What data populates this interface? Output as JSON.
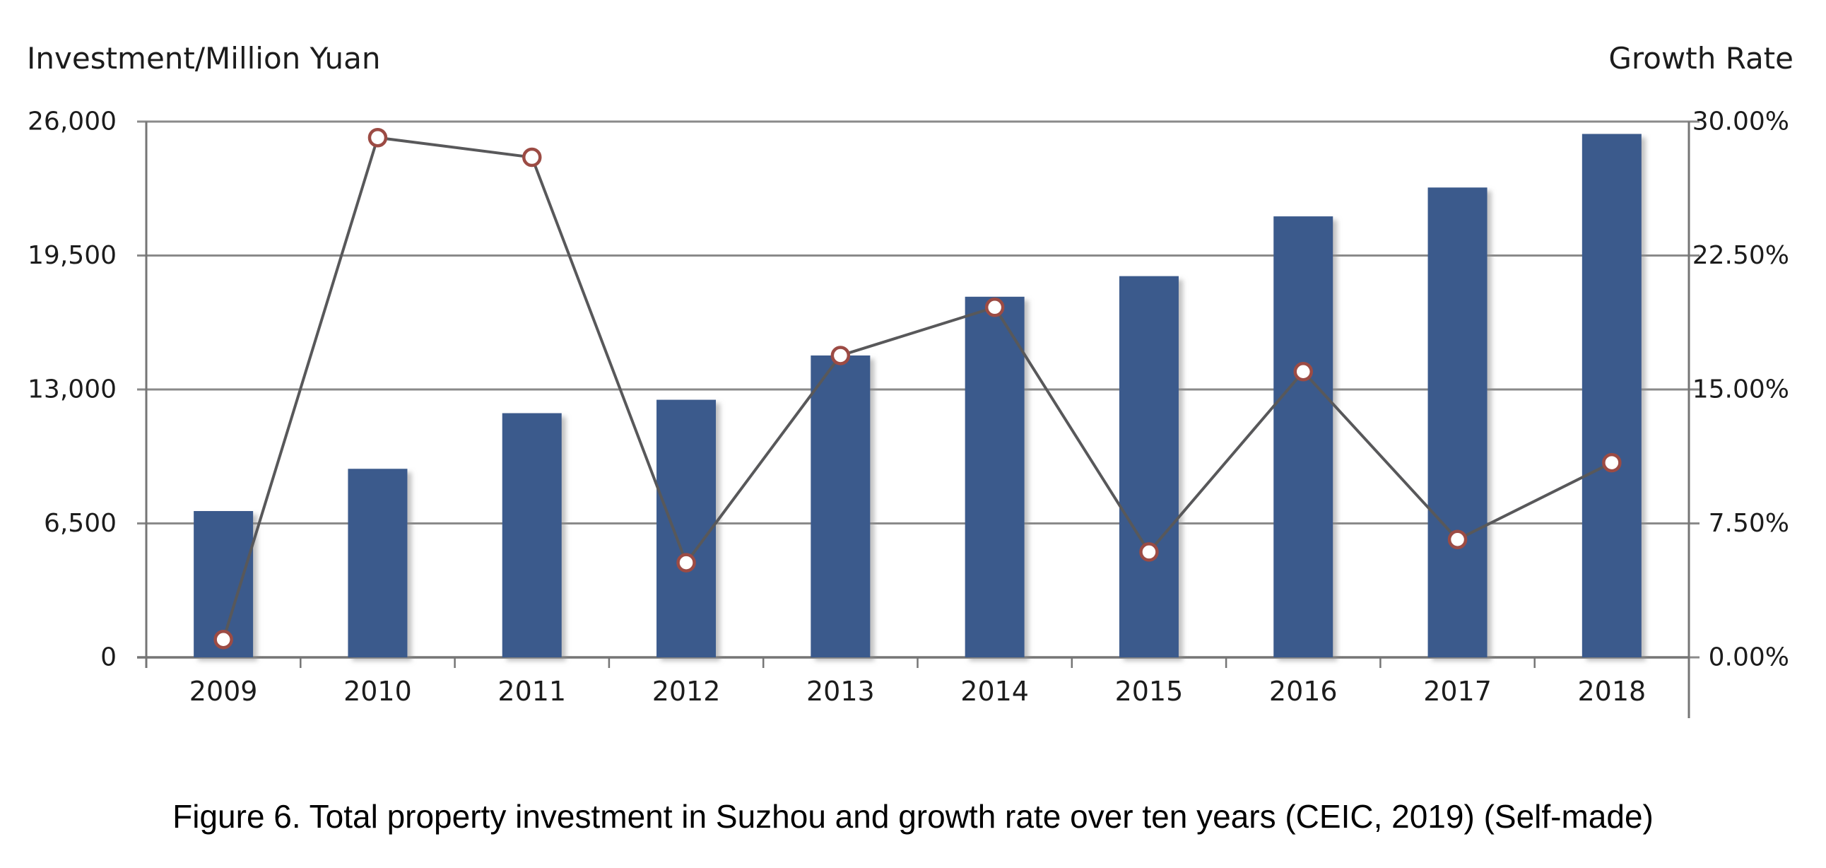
{
  "figure": {
    "left_axis_title": "Investment/Million Yuan",
    "right_axis_title": "Growth Rate",
    "caption": "Figure 6. Total property investment in Suzhou and growth rate over ten years (CEIC, 2019) (Self-made)"
  },
  "chart_data": {
    "type": "bar",
    "subtype": "combo-bar-line-dual-axis",
    "title": "Figure 6. Total property investment in Suzhou and growth rate over ten years (CEIC, 2019) (Self-made)",
    "categories": [
      "2009",
      "2010",
      "2011",
      "2012",
      "2013",
      "2014",
      "2015",
      "2016",
      "2017",
      "2018"
    ],
    "series": [
      {
        "name": "Total property investment",
        "type": "bar",
        "axis": "left",
        "unit": "Million Yuan",
        "values": [
          7100,
          9150,
          11850,
          12500,
          14650,
          17500,
          18500,
          21400,
          22800,
          25400
        ]
      },
      {
        "name": "Growth Rate",
        "type": "line",
        "axis": "right",
        "unit": "percent",
        "values": [
          1.0,
          29.1,
          28.0,
          5.3,
          16.9,
          19.6,
          5.9,
          16.0,
          6.6,
          10.9
        ]
      }
    ],
    "left_axis": {
      "title": "Investment/Million Yuan",
      "min": 0,
      "max": 26000,
      "tick_values": [
        26000,
        19500,
        13000,
        6500,
        0
      ],
      "tick_labels": [
        "26,000",
        "19,500",
        "13,000",
        "6,500",
        "0"
      ]
    },
    "right_axis": {
      "title": "Growth Rate",
      "min": 0,
      "max": 30,
      "tick_values": [
        30,
        22.5,
        15,
        7.5,
        0
      ],
      "tick_labels": [
        "30.00%",
        "22.50%",
        "15.00%",
        "7.50%",
        "0.00%"
      ]
    },
    "grid": true,
    "legend_position": "none",
    "colors": {
      "bar_fill": "#3B5A8C",
      "line_stroke": "#58585A",
      "marker_fill": "#FFFFFF",
      "marker_stroke": "#9C4B44",
      "gridline": "#8A8A8A",
      "axis_line": "#757575",
      "tick_text": "#1C1C1C"
    }
  }
}
